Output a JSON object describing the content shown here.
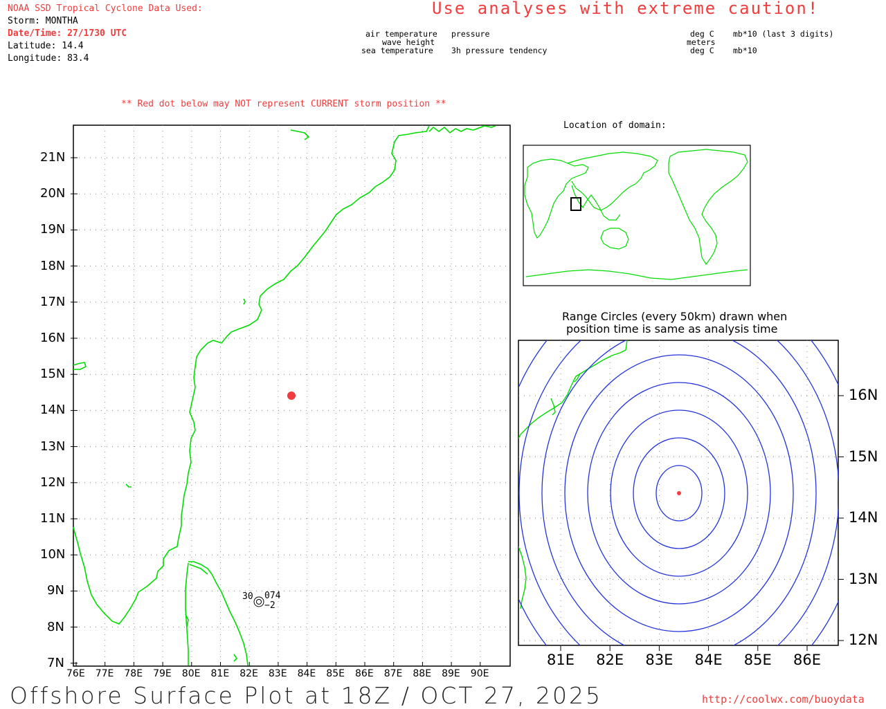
{
  "header": {
    "source_line": "NOAA SSD Tropical Cyclone Data Used:",
    "storm": "Storm: MONTHA",
    "datetime": "Date/Time: 27/1730 UTC",
    "latitude": "Latitude: 14.4",
    "longitude": "Longitude: 83.4",
    "caution": "Use analyses with extreme caution!"
  },
  "legend_left": {
    "top_left": "air temperature",
    "mid_left": "wave height",
    "bottom_left": "sea temperature",
    "top_right": "pressure",
    "bottom_right": "3h pressure tendency"
  },
  "legend_right": {
    "top_left": "deg C",
    "mid_left": "meters",
    "bottom_left": "deg C",
    "top_right": "mb*10 (last 3 digits)",
    "bottom_right": "mb*10"
  },
  "red_warning": "** Red dot below may NOT represent CURRENT storm position **",
  "inset": {
    "location_title": "Location of domain:",
    "range_title_1": "Range Circles (every 50km) drawn when",
    "range_title_2": "position time is same as analysis time"
  },
  "main_map": {
    "lon_labels": [
      "76E",
      "77E",
      "78E",
      "79E",
      "80E",
      "81E",
      "82E",
      "83E",
      "84E",
      "85E",
      "86E",
      "87E",
      "88E",
      "89E",
      "90E"
    ],
    "lat_labels": [
      "21N",
      "20N",
      "19N",
      "18N",
      "17N",
      "16N",
      "15N",
      "14N",
      "13N",
      "12N",
      "11N",
      "10N",
      "9N",
      "8N",
      "7N"
    ],
    "storm_position": {
      "lat": 14.4,
      "lon": 83.4
    },
    "station": {
      "air_temp": "30",
      "pressure": "074",
      "tendency": "−2"
    }
  },
  "range_map": {
    "lon_labels": [
      "81E",
      "82E",
      "83E",
      "84E",
      "85E",
      "86E"
    ],
    "lat_labels": [
      "16N",
      "15N",
      "14N",
      "13N",
      "12N"
    ],
    "circle_count": 8,
    "circle_spacing_km": 50
  },
  "colors": {
    "coast": "#00dd00",
    "storm": "#f03c3c",
    "circles": "#2233dd",
    "grid": "#888888"
  },
  "footer": {
    "title": "Offshore Surface Plot at 18Z / OCT 27, 2025",
    "url": "http://coolwx.com/buoydata"
  }
}
